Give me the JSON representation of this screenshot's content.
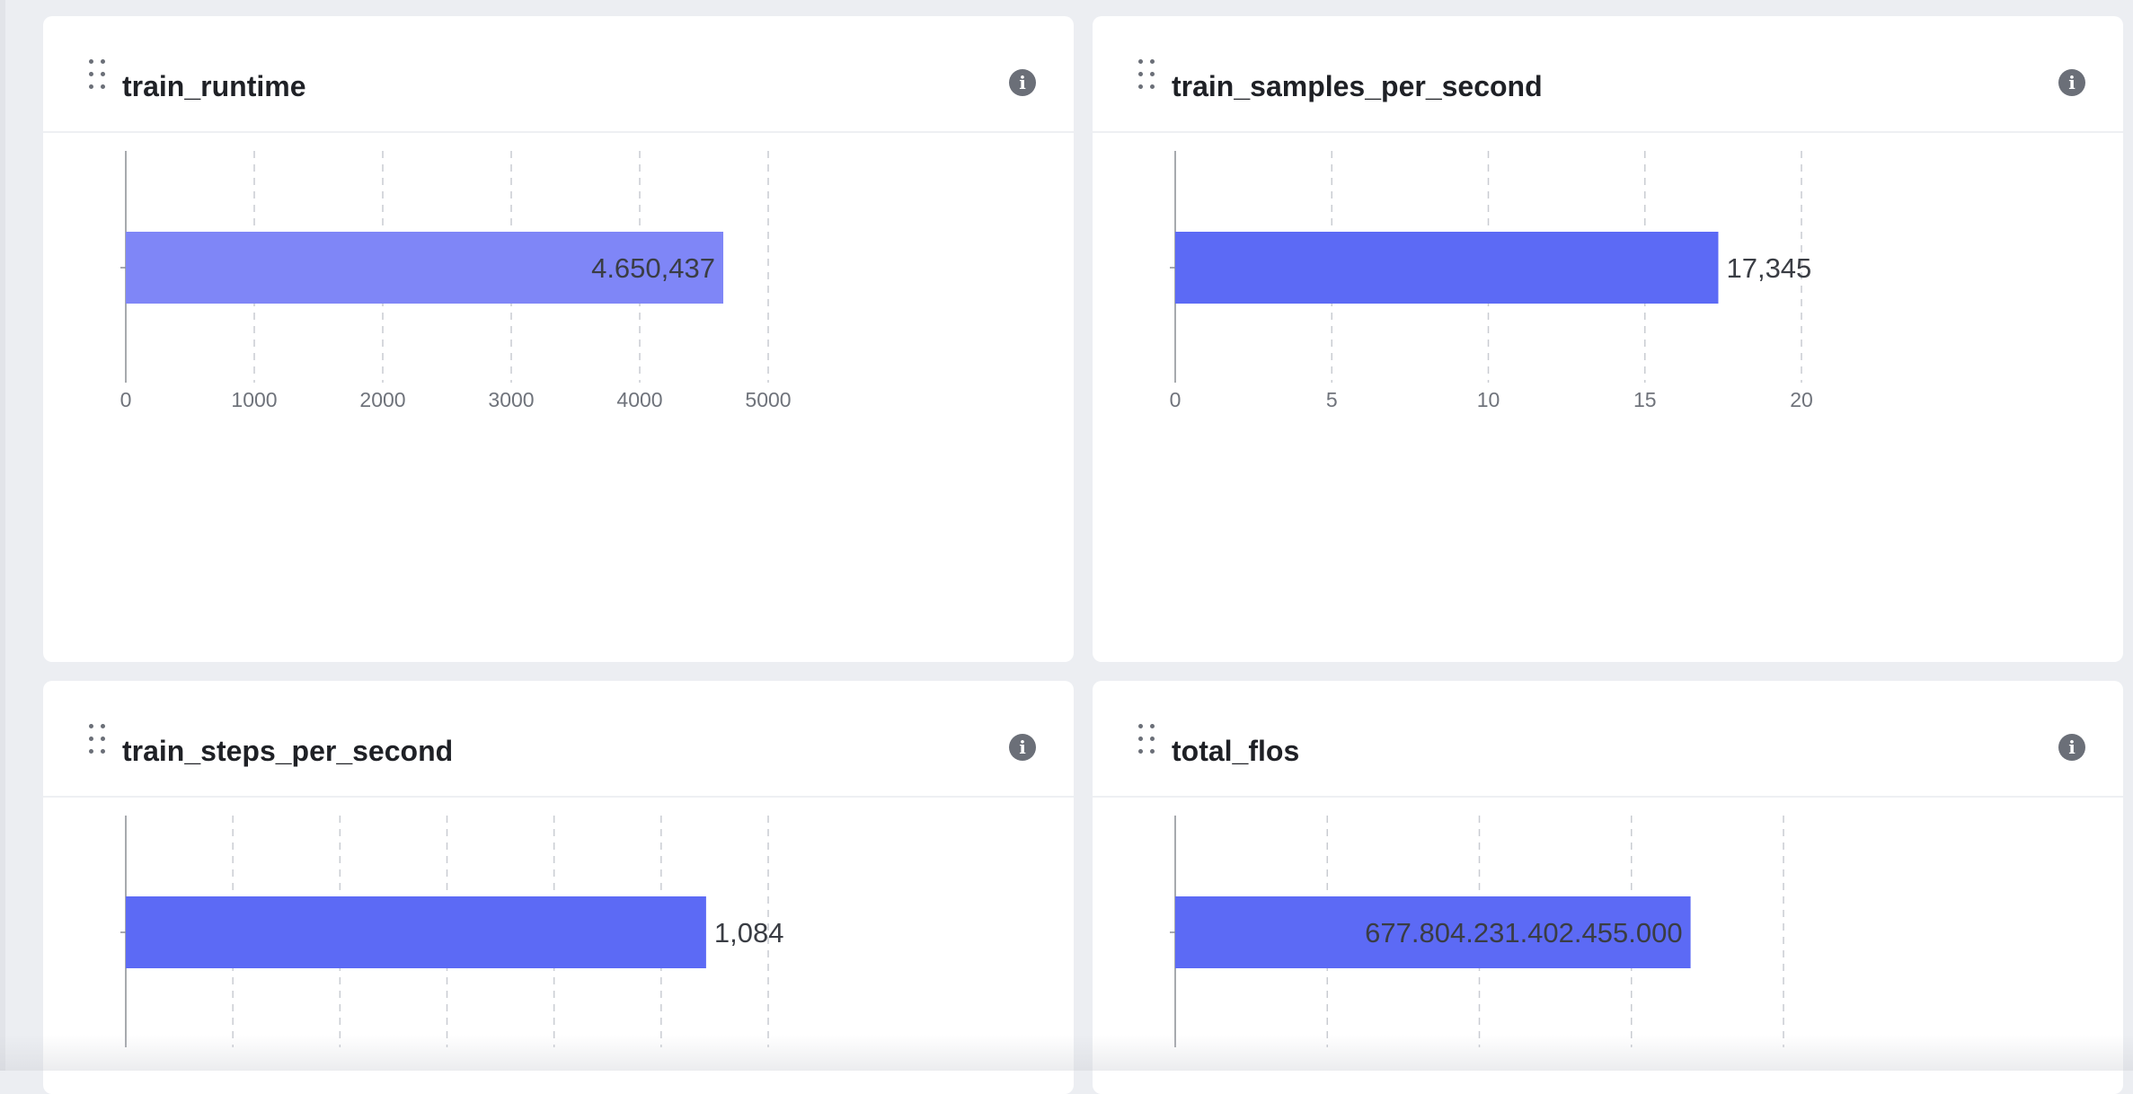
{
  "panels": [
    {
      "title": "train_runtime",
      "info_icon": "info-icon",
      "drag_icon": "drag-handle-icon",
      "value_label": "4.650,437",
      "label_inside": true,
      "bar_color": "#7f86f7",
      "chart_data": {
        "type": "bar",
        "orientation": "horizontal",
        "categories": [
          ""
        ],
        "values": [
          4650.437
        ],
        "xlim": [
          0,
          5000
        ],
        "xticks": [
          0,
          1000,
          2000,
          3000,
          4000,
          5000
        ],
        "xtick_labels": [
          "0",
          "1000",
          "2000",
          "3000",
          "4000",
          "5000"
        ],
        "grid": "vertical dashed"
      }
    },
    {
      "title": "train_samples_per_second",
      "info_icon": "info-icon",
      "drag_icon": "drag-handle-icon",
      "value_label": "17,345",
      "label_inside": false,
      "bar_color": "#5c6af5",
      "chart_data": {
        "type": "bar",
        "orientation": "horizontal",
        "categories": [
          ""
        ],
        "values": [
          17.345
        ],
        "xlim": [
          0,
          20
        ],
        "xticks": [
          0,
          5,
          10,
          15,
          20
        ],
        "xtick_labels": [
          "0",
          "5",
          "10",
          "15",
          "20"
        ],
        "grid": "vertical dashed"
      }
    },
    {
      "title": "train_steps_per_second",
      "info_icon": "info-icon",
      "drag_icon": "drag-handle-icon",
      "value_label": "1,084",
      "label_inside": false,
      "bar_color": "#5c6af5",
      "chart_data": {
        "type": "bar",
        "orientation": "horizontal",
        "categories": [
          ""
        ],
        "values": [
          1.084
        ],
        "xlim": [
          0,
          1.2
        ],
        "xticks": [
          0,
          0.2,
          0.4,
          0.6,
          0.8,
          1.0,
          1.2
        ],
        "xtick_labels": [],
        "grid": "vertical dashed"
      }
    },
    {
      "title": "total_flos",
      "info_icon": "info-icon",
      "drag_icon": "drag-handle-icon",
      "value_label": "677.804.231.402.455.000",
      "label_inside": true,
      "bar_color": "#5c6af5",
      "chart_data": {
        "type": "bar",
        "orientation": "horizontal",
        "categories": [
          ""
        ],
        "values": [
          677804231402455000
        ],
        "xlim": [
          0,
          800000000000000000
        ],
        "xticks": [
          0,
          200000000000000000,
          400000000000000000,
          600000000000000000,
          800000000000000000
        ],
        "xtick_labels": [],
        "grid": "vertical dashed"
      }
    }
  ]
}
